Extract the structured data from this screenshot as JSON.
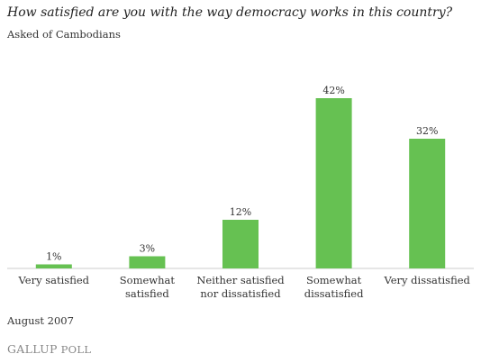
{
  "chart_data": {
    "type": "bar",
    "title": "How satisfied are you with the way democracy works in this country?",
    "subtitle": "Asked of Cambodians",
    "categories": [
      [
        "Very satisfied"
      ],
      [
        "Somewhat",
        "satisfied"
      ],
      [
        "Neither satisfied",
        "nor dissatisfied"
      ],
      [
        "Somewhat",
        "dissatisfied"
      ],
      [
        "Very dissatisfied"
      ]
    ],
    "values": [
      1,
      3,
      12,
      42,
      32
    ],
    "data_labels": [
      "1%",
      "3%",
      "12%",
      "42%",
      "32%"
    ],
    "bar_color": "#66c152",
    "ylim": [
      0,
      42
    ],
    "grid": false,
    "legend": "none"
  },
  "footer": {
    "date": "August 2007",
    "source_brand": "GALLUP",
    "source_suffix": " POLL"
  }
}
